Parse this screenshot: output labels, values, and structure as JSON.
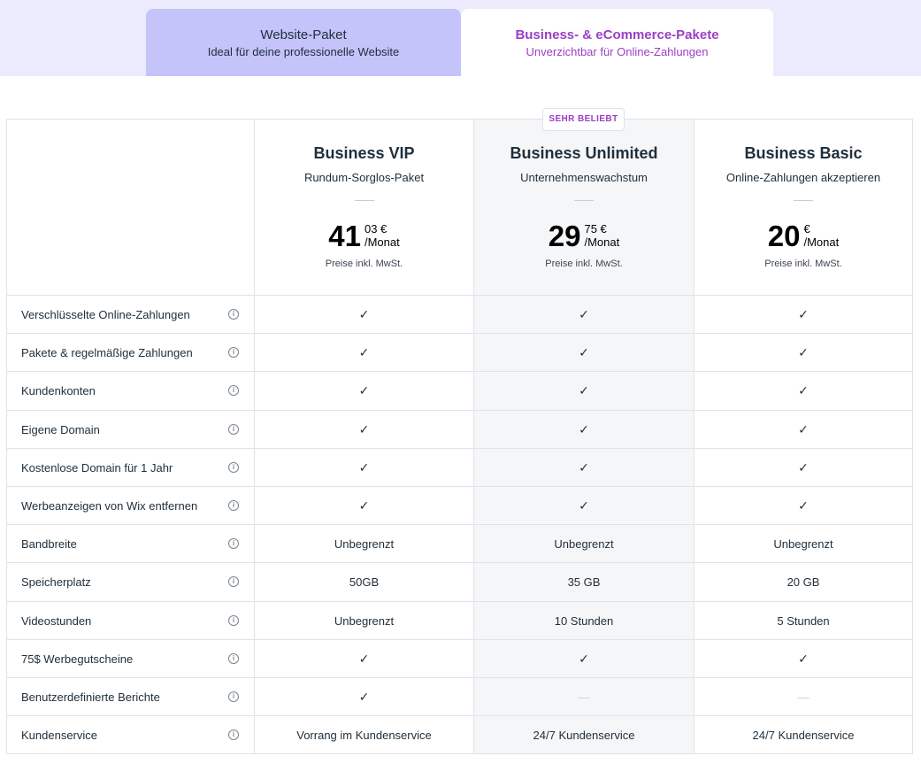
{
  "tabs": [
    {
      "title": "Website-Paket",
      "subtitle": "Ideal für deine professionelle Website"
    },
    {
      "title": "Business- & eCommerce-Pakete",
      "subtitle": "Unverzichtbar für Online-Zahlungen"
    }
  ],
  "badge": "SEHR BELIEBT",
  "plans": [
    {
      "name": "Business VIP",
      "subtitle": "Rundum-Sorglos-Paket",
      "price_int": "41",
      "price_cents": "03 €",
      "per": "/Monat",
      "note": "Preise inkl. MwSt."
    },
    {
      "name": "Business Unlimited",
      "subtitle": "Unternehmenswachstum",
      "price_int": "29",
      "price_cents": "75 €",
      "per": "/Monat",
      "note": "Preise inkl. MwSt."
    },
    {
      "name": "Business Basic",
      "subtitle": "Online-Zahlungen akzeptieren",
      "price_int": "20",
      "price_cents": "€",
      "per": "/Monat",
      "note": "Preise inkl. MwSt."
    }
  ],
  "check_symbol": "✓",
  "dash_symbol": "—",
  "info_symbol": "i",
  "features": [
    {
      "label": "Verschlüsselte Online-Zahlungen",
      "values": [
        "✓",
        "✓",
        "✓"
      ]
    },
    {
      "label": "Pakete & regelmäßige Zahlungen",
      "values": [
        "✓",
        "✓",
        "✓"
      ]
    },
    {
      "label": "Kundenkonten",
      "values": [
        "✓",
        "✓",
        "✓"
      ]
    },
    {
      "label": "Eigene Domain",
      "values": [
        "✓",
        "✓",
        "✓"
      ]
    },
    {
      "label": "Kostenlose Domain für 1 Jahr",
      "values": [
        "✓",
        "✓",
        "✓"
      ]
    },
    {
      "label": "Werbeanzeigen von Wix entfernen",
      "values": [
        "✓",
        "✓",
        "✓"
      ]
    },
    {
      "label": "Bandbreite",
      "values": [
        "Unbegrenzt",
        "Unbegrenzt",
        "Unbegrenzt"
      ]
    },
    {
      "label": "Speicherplatz",
      "values": [
        "50GB",
        "35 GB",
        "20 GB"
      ]
    },
    {
      "label": "Videostunden",
      "values": [
        "Unbegrenzt",
        "10 Stunden",
        "5 Stunden"
      ]
    },
    {
      "label": "75$ Werbegutscheine",
      "values": [
        "✓",
        "✓",
        "✓"
      ]
    },
    {
      "label": "Benutzerdefinierte Berichte",
      "values": [
        "✓",
        "—",
        "—"
      ]
    },
    {
      "label": "Kundenservice",
      "values": [
        "Vorrang im Kundenservice",
        "24/7 Kundenservice",
        "24/7 Kundenservice"
      ]
    }
  ],
  "colors": {
    "accent": "#9a3fc4",
    "tab_active_bg": "#ffffff",
    "tab_inactive_bg": "#c4c4fb",
    "band_bg": "#ecebfd",
    "highlight_col": "#f5f6f8"
  }
}
